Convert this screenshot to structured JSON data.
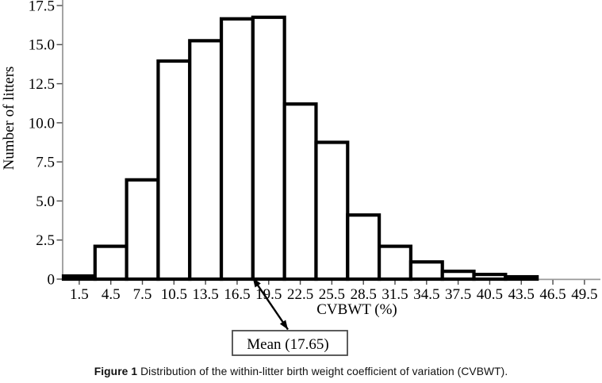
{
  "chart_data": {
    "type": "bar",
    "subtype": "histogram",
    "title": "",
    "xlabel": "CVBWT (%)",
    "ylabel": "Number of litters",
    "categories": [
      1.5,
      4.5,
      7.5,
      10.5,
      13.5,
      16.5,
      19.5,
      22.5,
      25.5,
      28.5,
      31.5,
      34.5,
      37.5,
      40.5,
      43.5,
      46.5,
      49.5
    ],
    "values": [
      0.2,
      2.1,
      6.35,
      13.95,
      15.25,
      16.65,
      16.75,
      11.2,
      8.75,
      4.1,
      2.1,
      1.1,
      0.5,
      0.3,
      0.15,
      0,
      0
    ],
    "bin_width": 3,
    "xlim": [
      0,
      51.2
    ],
    "ylim": [
      0,
      17.5
    ],
    "x_tick_labels": [
      "1.5",
      "4.5",
      "7.5",
      "10.5",
      "13.5",
      "16.5",
      "19.5",
      "22.5",
      "25.5",
      "28.5",
      "31.5",
      "34.5",
      "37.5",
      "40.5",
      "43.5",
      "46.5",
      "49.5"
    ],
    "y_ticks": [
      0,
      2.5,
      5,
      7.5,
      10,
      12.5,
      15,
      17.5
    ],
    "y_tick_labels": [
      "0",
      "2.5",
      "5.0",
      "7.5",
      "10.0",
      "12.5",
      "15.0",
      "17.5"
    ],
    "grid": false,
    "legend": "none",
    "bar_fill": "#ffffff",
    "bar_stroke": "#000000",
    "axis_color": "#9a9a9a",
    "tick_color": "#4a4a4a",
    "annotation": {
      "label": "Mean (17.65)",
      "value": 17.65
    }
  },
  "caption": {
    "prefix": "Figure 1",
    "text": " Distribution of the within-litter birth weight coefficient of variation (CVBWT)."
  }
}
